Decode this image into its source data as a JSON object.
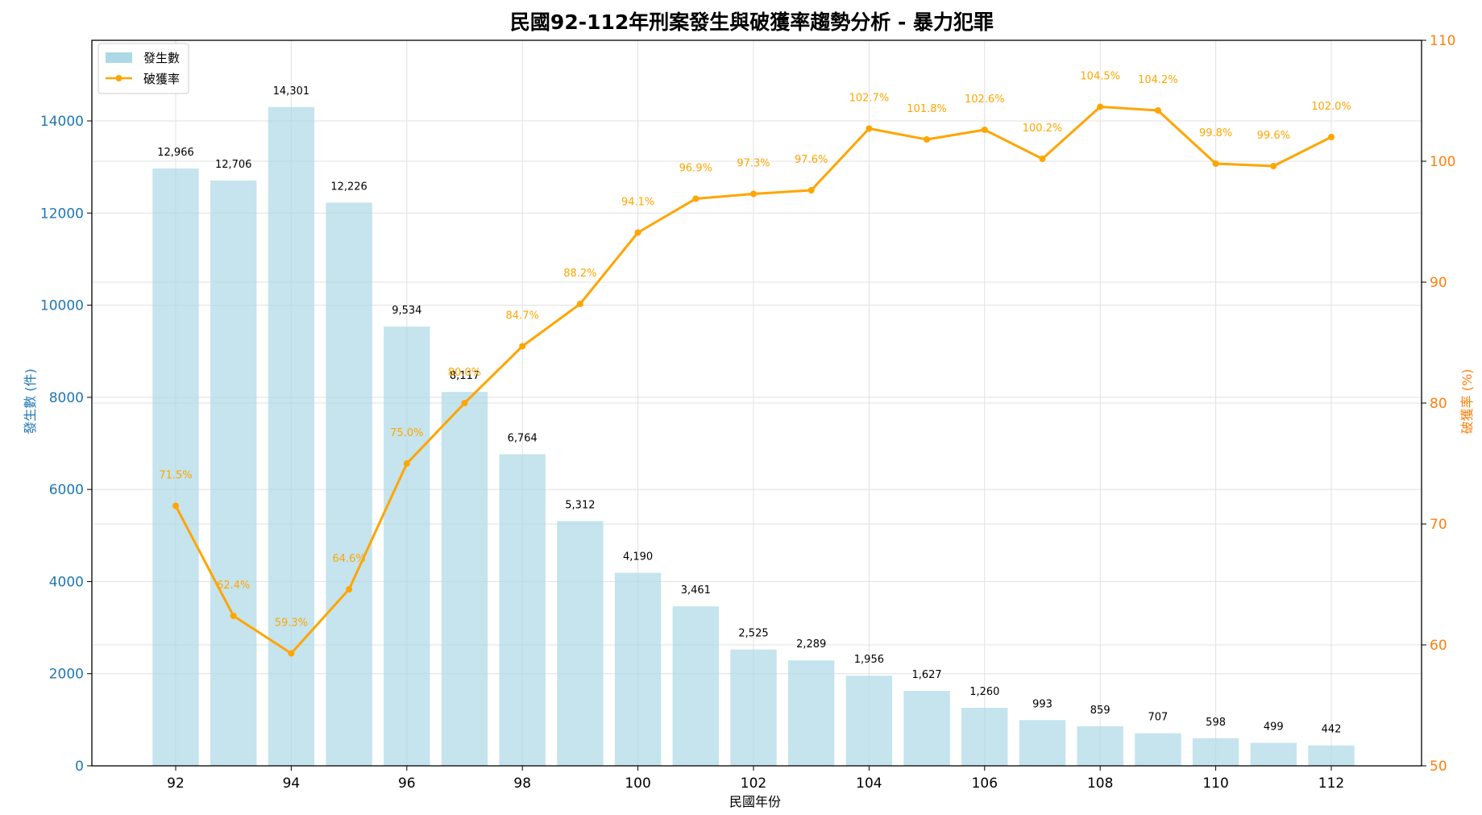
{
  "chart_data": {
    "type": "bar+line",
    "title": "民國92-112年刑案發生與破獲率趨勢分析 - 暴力犯罪",
    "xlabel": "民國年份",
    "ylabel_left": "發生數 (件)",
    "ylabel_right": "破獲率 (%)",
    "x": [
      92,
      93,
      94,
      95,
      96,
      97,
      98,
      99,
      100,
      101,
      102,
      103,
      104,
      105,
      106,
      107,
      108,
      109,
      110,
      111,
      112
    ],
    "x_ticks": [
      "92",
      "94",
      "96",
      "98",
      "100",
      "102",
      "104",
      "106",
      "108",
      "110",
      "112"
    ],
    "left_ticks": [
      "0",
      "2000",
      "4000",
      "6000",
      "8000",
      "10000",
      "12000",
      "14000"
    ],
    "right_ticks": [
      "50",
      "60",
      "70",
      "80",
      "90",
      "100",
      "110"
    ],
    "ylim_left": [
      0,
      15750
    ],
    "ylim_right": [
      50,
      110
    ],
    "grid": true,
    "legend_position": "top-left",
    "series": [
      {
        "name": "發生數",
        "kind": "bar",
        "axis": "left",
        "color": "#add8e6",
        "values": [
          12966,
          12706,
          14301,
          12226,
          9534,
          8117,
          6764,
          5312,
          4190,
          3461,
          2525,
          2289,
          1956,
          1627,
          1260,
          993,
          859,
          707,
          598,
          499,
          442
        ],
        "labels": [
          "12,966",
          "12,706",
          "14,301",
          "12,226",
          "9,534",
          "8,117",
          "6,764",
          "5,312",
          "4,190",
          "3,461",
          "2,525",
          "2,289",
          "1,956",
          "1,627",
          "1,260",
          "993",
          "859",
          "707",
          "598",
          "499",
          "442"
        ]
      },
      {
        "name": "破獲率",
        "kind": "line",
        "axis": "right",
        "color": "#ffa500",
        "values": [
          71.5,
          62.4,
          59.3,
          64.6,
          75.0,
          80.0,
          84.7,
          88.2,
          94.1,
          96.9,
          97.3,
          97.6,
          102.7,
          101.8,
          102.6,
          100.2,
          104.5,
          104.2,
          99.8,
          99.6,
          102.0
        ],
        "labels": [
          "71.5%",
          "62.4%",
          "59.3%",
          "64.6%",
          "75.0%",
          "80.0%",
          "84.7%",
          "88.2%",
          "94.1%",
          "96.9%",
          "97.3%",
          "97.6%",
          "102.7%",
          "101.8%",
          "102.6%",
          "100.2%",
          "104.5%",
          "104.2%",
          "99.8%",
          "99.6%",
          "102.0%"
        ]
      }
    ]
  },
  "colors": {
    "left_axis": "#1f77b4",
    "right_axis": "#ff7f0e",
    "bar": "#add8e6",
    "line": "#ffa500"
  }
}
